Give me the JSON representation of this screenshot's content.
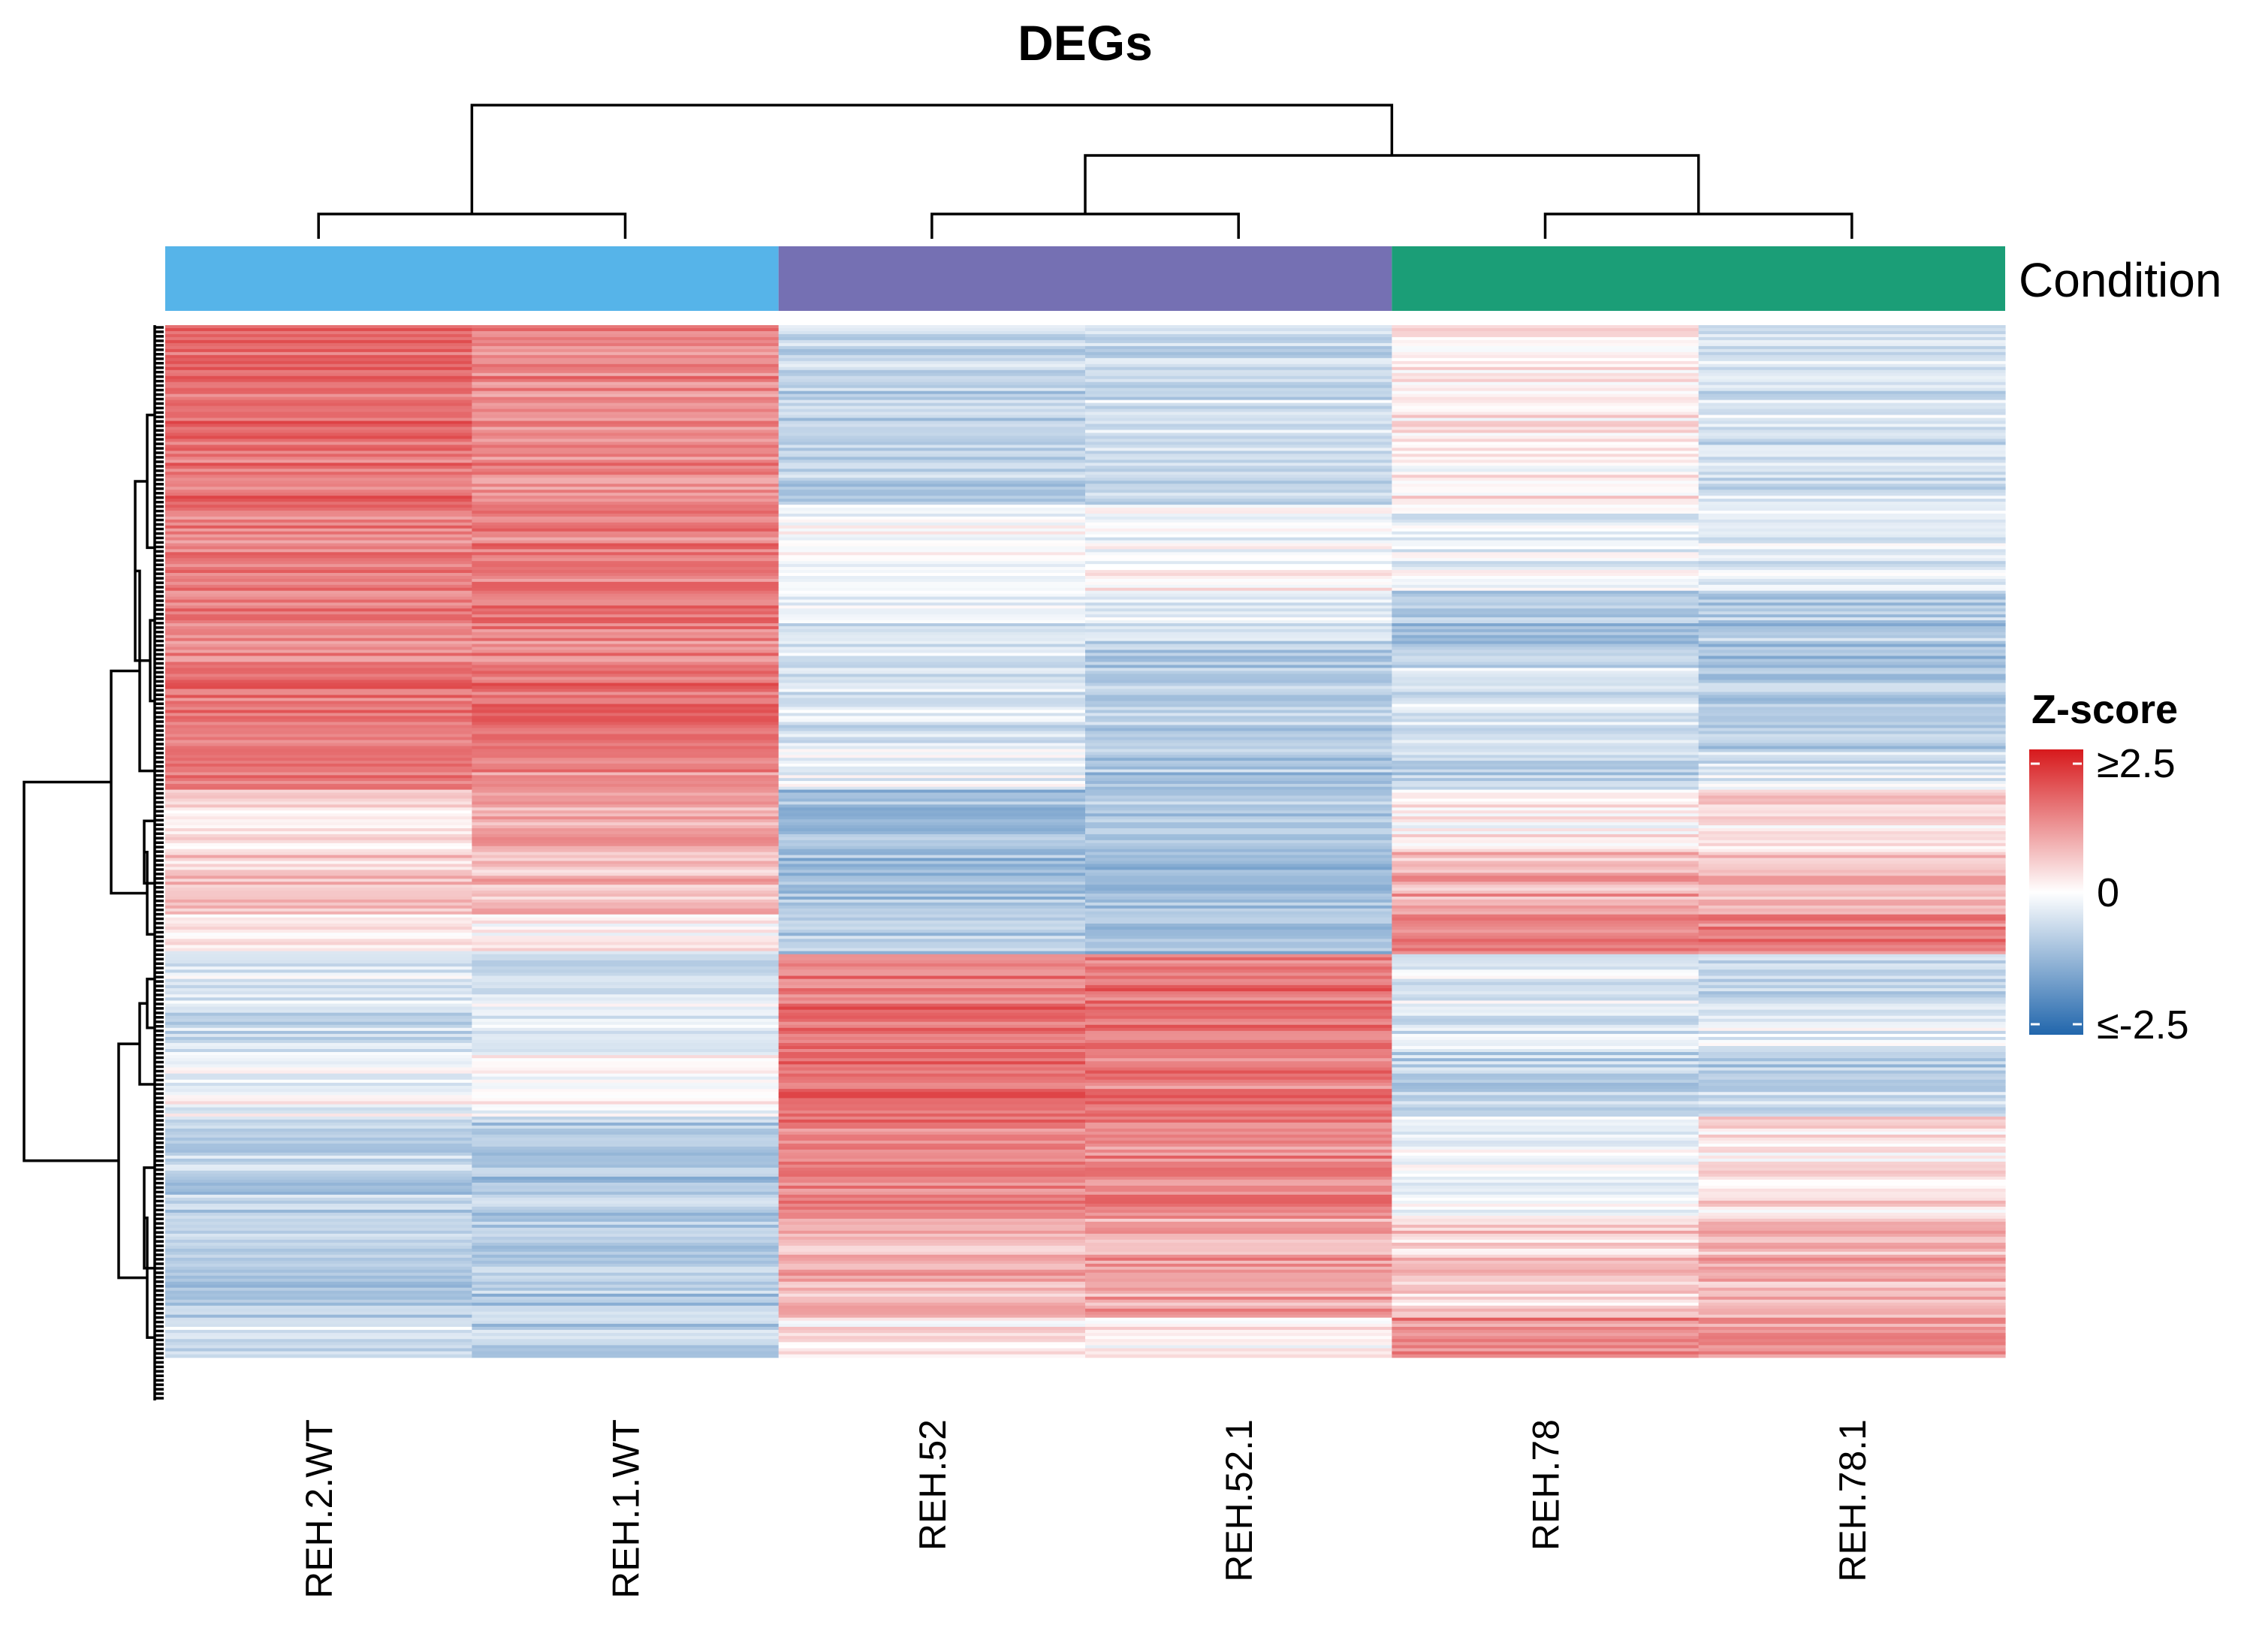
{
  "chart_data": {
    "type": "heatmap",
    "title": "DEGs",
    "columns": [
      "REH.2.WT",
      "REH.1.WT",
      "REH.52",
      "REH.52.1",
      "REH.78",
      "REH.78.1"
    ],
    "column_annotation": {
      "name": "Condition",
      "groups": [
        {
          "columns": [
            "REH.2.WT",
            "REH.1.WT"
          ],
          "color": "#56B4E9"
        },
        {
          "columns": [
            "REH.52",
            "REH.52.1"
          ],
          "color": "#7570B3"
        },
        {
          "columns": [
            "REH.78",
            "REH.78.1"
          ],
          "color": "#1B9E77"
        }
      ]
    },
    "column_dendrogram": "((REH.2.WT,REH.1.WT),((REH.52,REH.52.1),(REH.78,REH.78.1)))",
    "row_clusters": [
      {
        "fraction": 0.167,
        "z": [
          1.6,
          1.3,
          -0.7,
          -0.6,
          0.2,
          -0.5
        ]
      },
      {
        "fraction": 0.08,
        "z": [
          1.4,
          1.5,
          -0.1,
          0.0,
          -0.2,
          -0.3
        ]
      },
      {
        "fraction": 0.055,
        "z": [
          1.3,
          1.4,
          -0.3,
          -0.5,
          -1.0,
          -0.9
        ]
      },
      {
        "fraction": 0.095,
        "z": [
          1.5,
          1.5,
          -0.4,
          -0.8,
          -0.5,
          -0.9
        ]
      },
      {
        "fraction": 0.035,
        "z": [
          1.4,
          1.3,
          -0.2,
          -0.9,
          -0.7,
          -0.4
        ]
      },
      {
        "fraction": 0.058,
        "z": [
          0.4,
          1.0,
          -1.1,
          -1.0,
          0.1,
          0.3
        ]
      },
      {
        "fraction": 0.058,
        "z": [
          0.6,
          0.8,
          -1.0,
          -1.1,
          0.9,
          0.7
        ]
      },
      {
        "fraction": 0.037,
        "z": [
          0.2,
          0.1,
          -0.9,
          -1.1,
          1.3,
          1.4
        ]
      },
      {
        "fraction": 0.046,
        "z": [
          -0.4,
          -0.5,
          1.4,
          1.6,
          -0.3,
          -0.6
        ]
      },
      {
        "fraction": 0.045,
        "z": [
          -0.6,
          -0.3,
          1.5,
          1.5,
          -0.4,
          -0.3
        ]
      },
      {
        "fraction": 0.06,
        "z": [
          -0.1,
          0.0,
          1.6,
          1.5,
          -0.7,
          -0.7
        ]
      },
      {
        "fraction": 0.095,
        "z": [
          -0.8,
          -0.9,
          1.4,
          1.3,
          -0.1,
          0.3
        ]
      },
      {
        "fraction": 0.092,
        "z": [
          -0.9,
          -0.9,
          0.8,
          1.0,
          0.5,
          0.8
        ]
      },
      {
        "fraction": 0.037,
        "z": [
          -0.6,
          -0.8,
          0.3,
          0.1,
          1.3,
          1.2
        ]
      }
    ],
    "legend": {
      "title": "Z-score",
      "ticks": [
        "≥2.5",
        "0",
        "≤-2.5"
      ],
      "range": [
        -2.5,
        2.5
      ],
      "colors": {
        "low": "#2166AC",
        "mid": "#FFFFFF",
        "high": "#D7191C"
      }
    }
  }
}
